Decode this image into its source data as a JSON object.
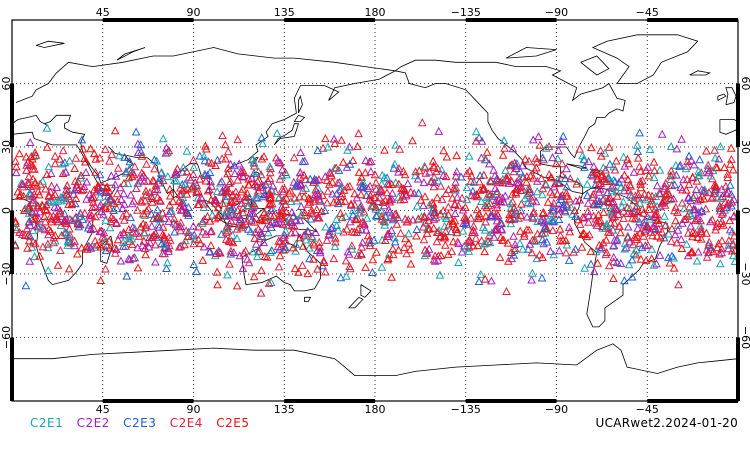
{
  "map": {
    "projection": "cylindrical equidistant, centered on 180",
    "lon_range": [
      0,
      360
    ],
    "lat_range": [
      -90,
      90
    ],
    "lon_ticks": [
      {
        "value": 45,
        "label": "45"
      },
      {
        "value": 90,
        "label": "90"
      },
      {
        "value": 135,
        "label": "135"
      },
      {
        "value": 180,
        "label": "180"
      },
      {
        "value": 225,
        "label": "−135"
      },
      {
        "value": 270,
        "label": "−90"
      },
      {
        "value": 315,
        "label": "−45"
      }
    ],
    "lat_ticks": [
      {
        "value": 60,
        "label": "60"
      },
      {
        "value": 30,
        "label": "30"
      },
      {
        "value": 0,
        "label": "0"
      },
      {
        "value": -30,
        "label": "−30"
      },
      {
        "value": -60,
        "label": "−60"
      }
    ],
    "grid": "dotted",
    "marker": "open triangle",
    "observation_band_lat": [
      -42,
      45
    ],
    "colors": {
      "C2E1": "#1aa3b0",
      "C2E2": "#a020c0",
      "C2E3": "#1c5fd8",
      "C2E4": "#e02040",
      "C2E5": "#ee1111"
    }
  },
  "legend": [
    {
      "key": "C2E1",
      "label": "C2E1",
      "color": "#1aa3b0"
    },
    {
      "key": "C2E2",
      "label": "C2E2",
      "color": "#a020c0"
    },
    {
      "key": "C2E3",
      "label": "C2E3",
      "color": "#1c5fd8"
    },
    {
      "key": "C2E4",
      "label": "C2E4",
      "color": "#e02040"
    },
    {
      "key": "C2E5",
      "label": "C2E5",
      "color": "#ee1111"
    }
  ],
  "caption": "UCARwet2.2024-01-20"
}
